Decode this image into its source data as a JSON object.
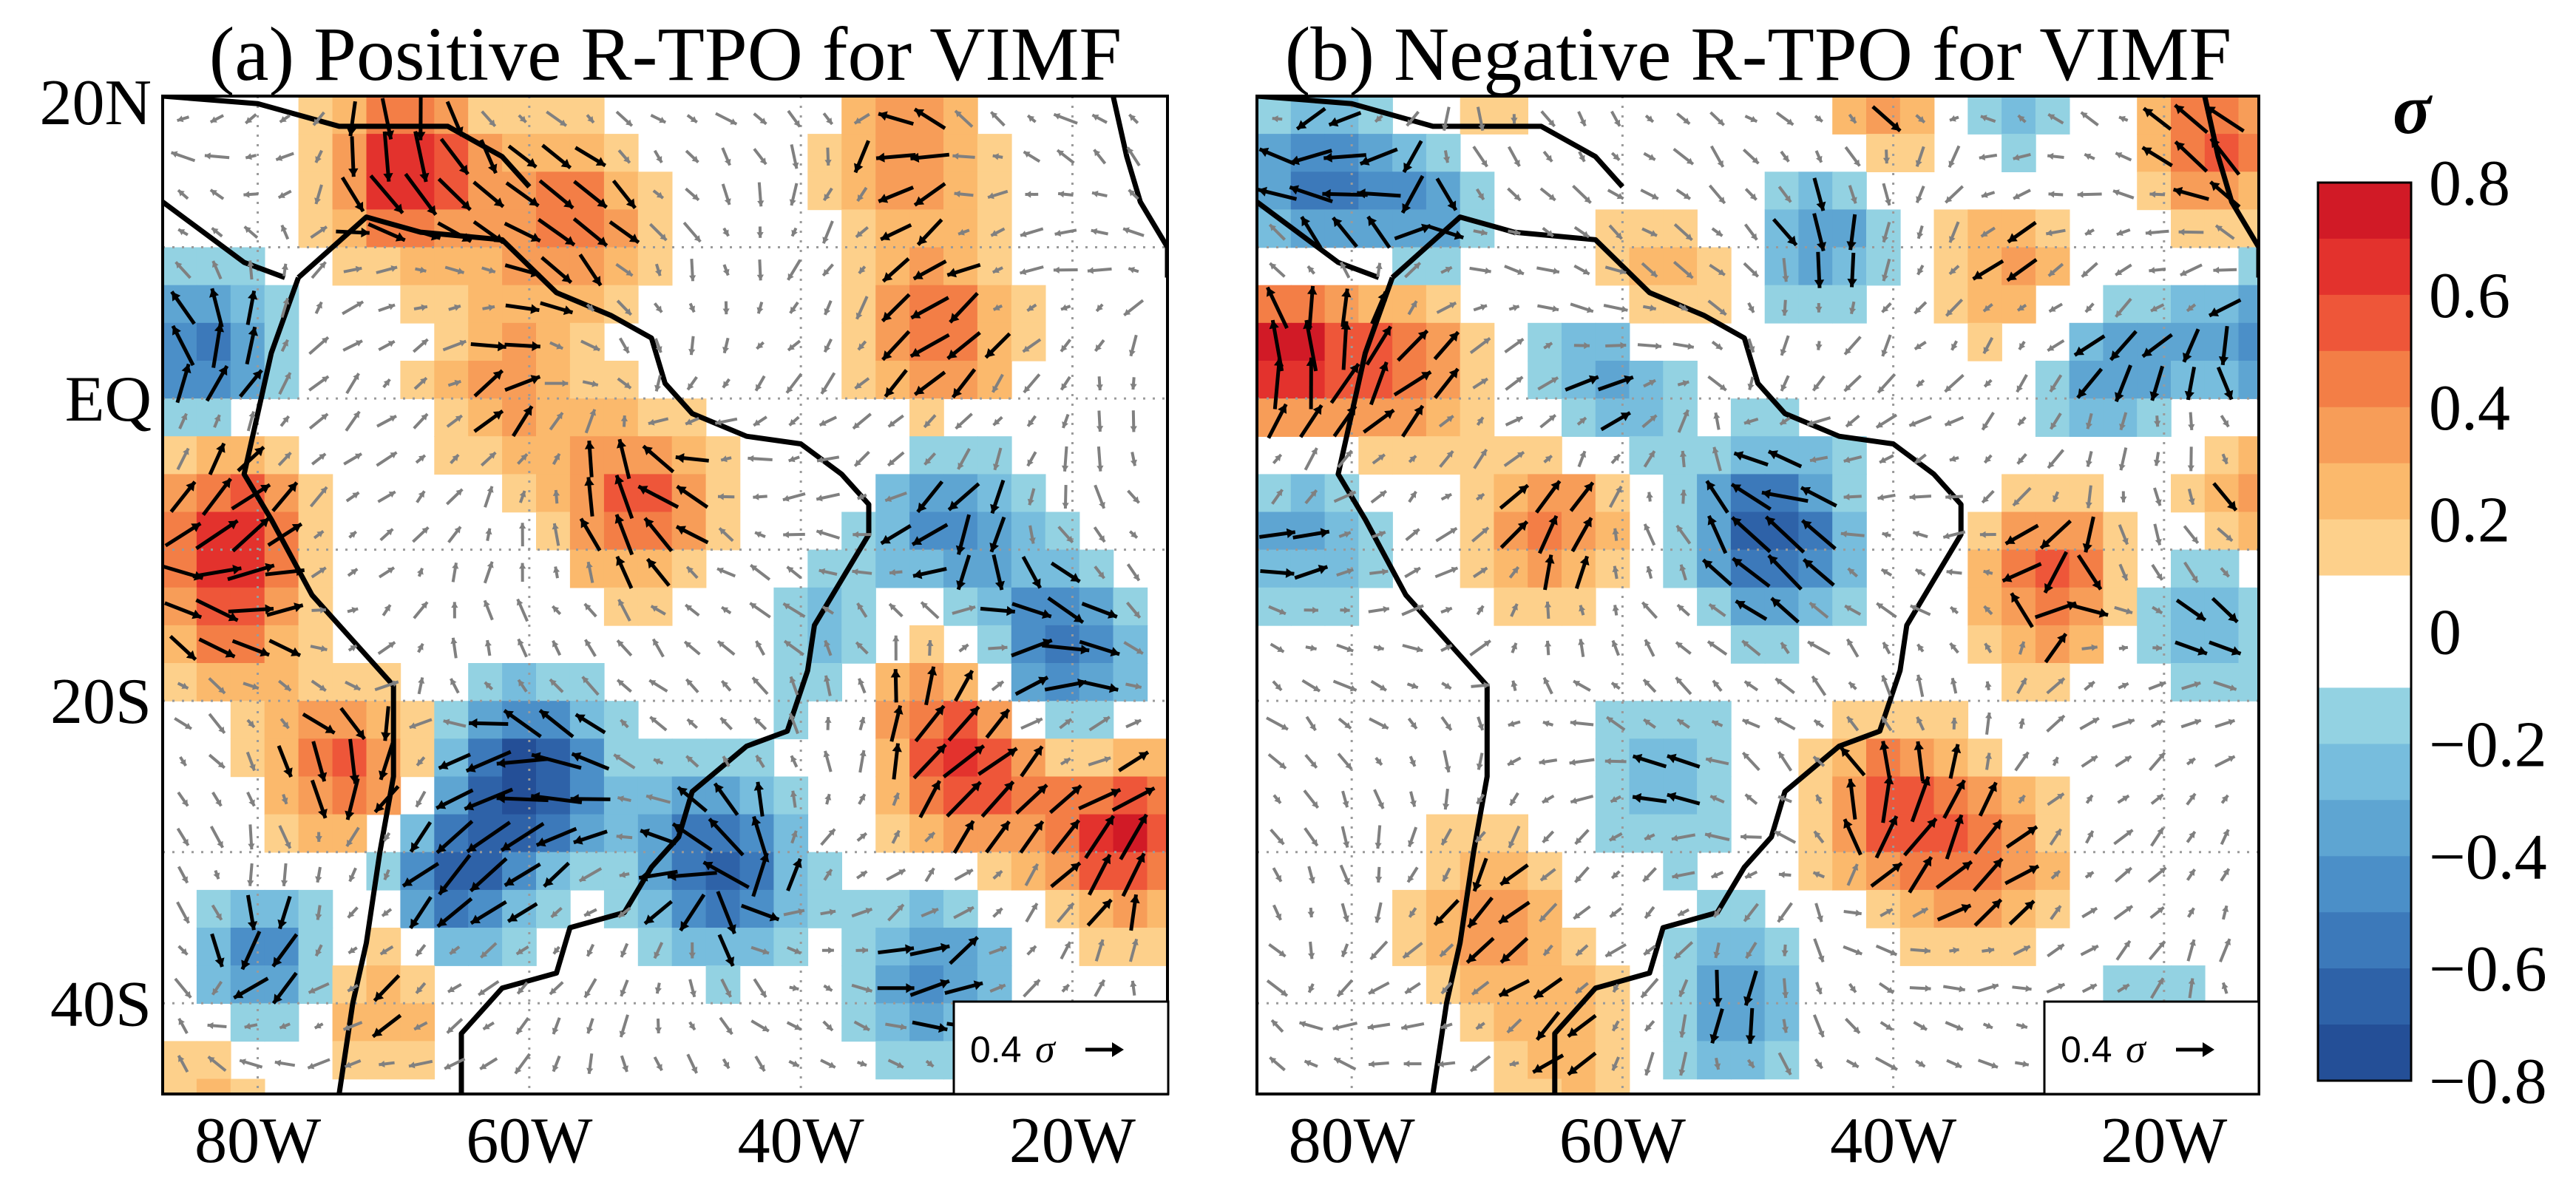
{
  "chart_data": [
    {
      "type": "heatmap",
      "panel": "a",
      "title": "(a) Positive R-TPO for VIMF",
      "xlabel": "",
      "ylabel": "",
      "x_ticks": [
        "80W",
        "60W",
        "40W",
        "20W"
      ],
      "x_tick_values": [
        -80,
        -60,
        -40,
        -20
      ],
      "y_ticks": [
        "20N",
        "EQ",
        "20S",
        "40S"
      ],
      "y_tick_values": [
        20,
        0,
        -20,
        -40
      ],
      "xlim": [
        -87,
        -13
      ],
      "ylim": [
        -46,
        20
      ],
      "gridlines": "dotted",
      "reference_vector": {
        "value": "0.4",
        "unit": "σ",
        "placement": "bottom-right"
      },
      "anomaly_centers": [
        {
          "lon": -69,
          "lat": 15,
          "value": 0.7
        },
        {
          "lon": -57,
          "lat": 12,
          "value": 0.5
        },
        {
          "lon": -32,
          "lat": 16,
          "value": 0.4
        },
        {
          "lon": -30,
          "lat": 4,
          "value": 0.5
        },
        {
          "lon": -62,
          "lat": 1,
          "value": 0.35
        },
        {
          "lon": -52,
          "lat": -7,
          "value": 0.55
        },
        {
          "lon": -82,
          "lat": -7,
          "value": 0.5
        },
        {
          "lon": -82,
          "lat": -14,
          "value": 0.45
        },
        {
          "lon": -73,
          "lat": -25,
          "value": 0.55
        },
        {
          "lon": -32,
          "lat": -19,
          "value": 0.4
        },
        {
          "lon": -27,
          "lat": -25,
          "value": 0.6
        },
        {
          "lon": -16,
          "lat": -29,
          "value": 0.7
        },
        {
          "lon": -72,
          "lat": -39,
          "value": 0.45
        },
        {
          "lon": -84,
          "lat": 3,
          "value": -0.55
        },
        {
          "lon": -29,
          "lat": -8,
          "value": -0.45
        },
        {
          "lon": -21,
          "lat": -17,
          "value": -0.6
        },
        {
          "lon": -37,
          "lat": -17,
          "value": -0.35
        },
        {
          "lon": -60,
          "lat": -25,
          "value": -0.75
        },
        {
          "lon": -46,
          "lat": -31,
          "value": -0.7
        },
        {
          "lon": -66,
          "lat": -32,
          "value": -0.6
        },
        {
          "lon": -30,
          "lat": -38,
          "value": -0.45
        },
        {
          "lon": -79,
          "lat": -38,
          "value": -0.6
        },
        {
          "lon": -83,
          "lat": -44,
          "value": 0.3
        }
      ]
    },
    {
      "type": "heatmap",
      "panel": "b",
      "title": "(b) Negative R-TPO for VIMF",
      "xlabel": "",
      "ylabel": "",
      "x_ticks": [
        "80W",
        "60W",
        "40W",
        "20W"
      ],
      "x_tick_values": [
        -80,
        -60,
        -40,
        -20
      ],
      "y_ticks": [
        "20N",
        "EQ",
        "20S",
        "40S"
      ],
      "y_tick_values": [
        20,
        0,
        -20,
        -40
      ],
      "xlim": [
        -87,
        -13
      ],
      "ylim": [
        -46,
        20
      ],
      "gridlines": "dotted",
      "reference_vector": {
        "value": "0.4",
        "unit": "σ",
        "placement": "bottom-right"
      },
      "anomaly_centers": [
        {
          "lon": -85,
          "lat": 3,
          "value": 0.75
        },
        {
          "lon": -76,
          "lat": 2,
          "value": 0.45
        },
        {
          "lon": -57,
          "lat": 8,
          "value": 0.3
        },
        {
          "lon": -40,
          "lat": 19,
          "value": 0.4
        },
        {
          "lon": -31,
          "lat": 9,
          "value": 0.35
        },
        {
          "lon": -16,
          "lat": 17,
          "value": 0.55
        },
        {
          "lon": -72,
          "lat": 17,
          "value": 0.4
        },
        {
          "lon": -65,
          "lat": -8,
          "value": 0.45
        },
        {
          "lon": -28,
          "lat": -12,
          "value": 0.55
        },
        {
          "lon": -14,
          "lat": -6,
          "value": 0.4
        },
        {
          "lon": -40,
          "lat": -27,
          "value": 0.55
        },
        {
          "lon": -33,
          "lat": -31,
          "value": 0.4
        },
        {
          "lon": -70,
          "lat": -34,
          "value": 0.35
        },
        {
          "lon": -64,
          "lat": -43,
          "value": 0.3
        },
        {
          "lon": -74,
          "lat": 14,
          "value": -0.6
        },
        {
          "lon": -83,
          "lat": 14,
          "value": -0.5
        },
        {
          "lon": -45,
          "lat": 11,
          "value": -0.4
        },
        {
          "lon": -32,
          "lat": 19,
          "value": -0.3
        },
        {
          "lon": -24,
          "lat": 2,
          "value": -0.4
        },
        {
          "lon": -13,
          "lat": 3,
          "value": -0.45
        },
        {
          "lon": -61,
          "lat": 1,
          "value": -0.4
        },
        {
          "lon": -49,
          "lat": -9,
          "value": -0.7
        },
        {
          "lon": -84,
          "lat": -9,
          "value": -0.35
        },
        {
          "lon": -17,
          "lat": -14,
          "value": -0.35
        },
        {
          "lon": -57,
          "lat": -25,
          "value": -0.3
        },
        {
          "lon": -52,
          "lat": -40,
          "value": -0.35
        },
        {
          "lon": -22,
          "lat": -43,
          "value": -0.3
        }
      ]
    }
  ],
  "colorbar": {
    "label": "σ",
    "tick_labels": [
      "0.8",
      "0.6",
      "0.4",
      "0.2",
      "0",
      "−0.2",
      "−0.4",
      "−0.6",
      "−0.8"
    ],
    "tick_values": [
      0.8,
      0.6,
      0.4,
      0.2,
      0,
      -0.2,
      -0.4,
      -0.6,
      -0.8
    ],
    "range": [
      -0.8,
      0.8
    ],
    "levels": 16,
    "colors": [
      "#d11a26",
      "#e3322d",
      "#ee5639",
      "#f37e46",
      "#f79d58",
      "#fbb96c",
      "#fdd08b",
      "#ffffff",
      "#ffffff",
      "#93d2e2",
      "#77bddd",
      "#5ea5d2",
      "#4b8fc8",
      "#3c79ba",
      "#2e62a8",
      "#244f97"
    ]
  }
}
